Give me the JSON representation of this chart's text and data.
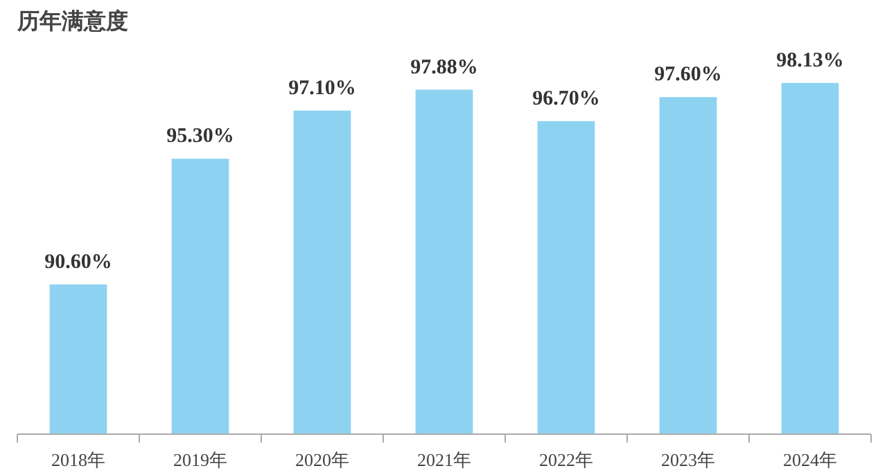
{
  "chart_data": {
    "type": "bar",
    "title": "历年满意度",
    "categories": [
      "2018年",
      "2019年",
      "2020年",
      "2021年",
      "2022年",
      "2023年",
      "2024年"
    ],
    "values": [
      90.6,
      95.3,
      97.1,
      97.88,
      96.7,
      97.6,
      98.13
    ],
    "value_labels": [
      "90.60%",
      "95.30%",
      "97.10%",
      "97.88%",
      "96.70%",
      "97.60%",
      "98.13%"
    ],
    "color": "#8dd3f1",
    "ylim": [
      85,
      98.13
    ],
    "tick_labels": "x",
    "grid": false
  }
}
